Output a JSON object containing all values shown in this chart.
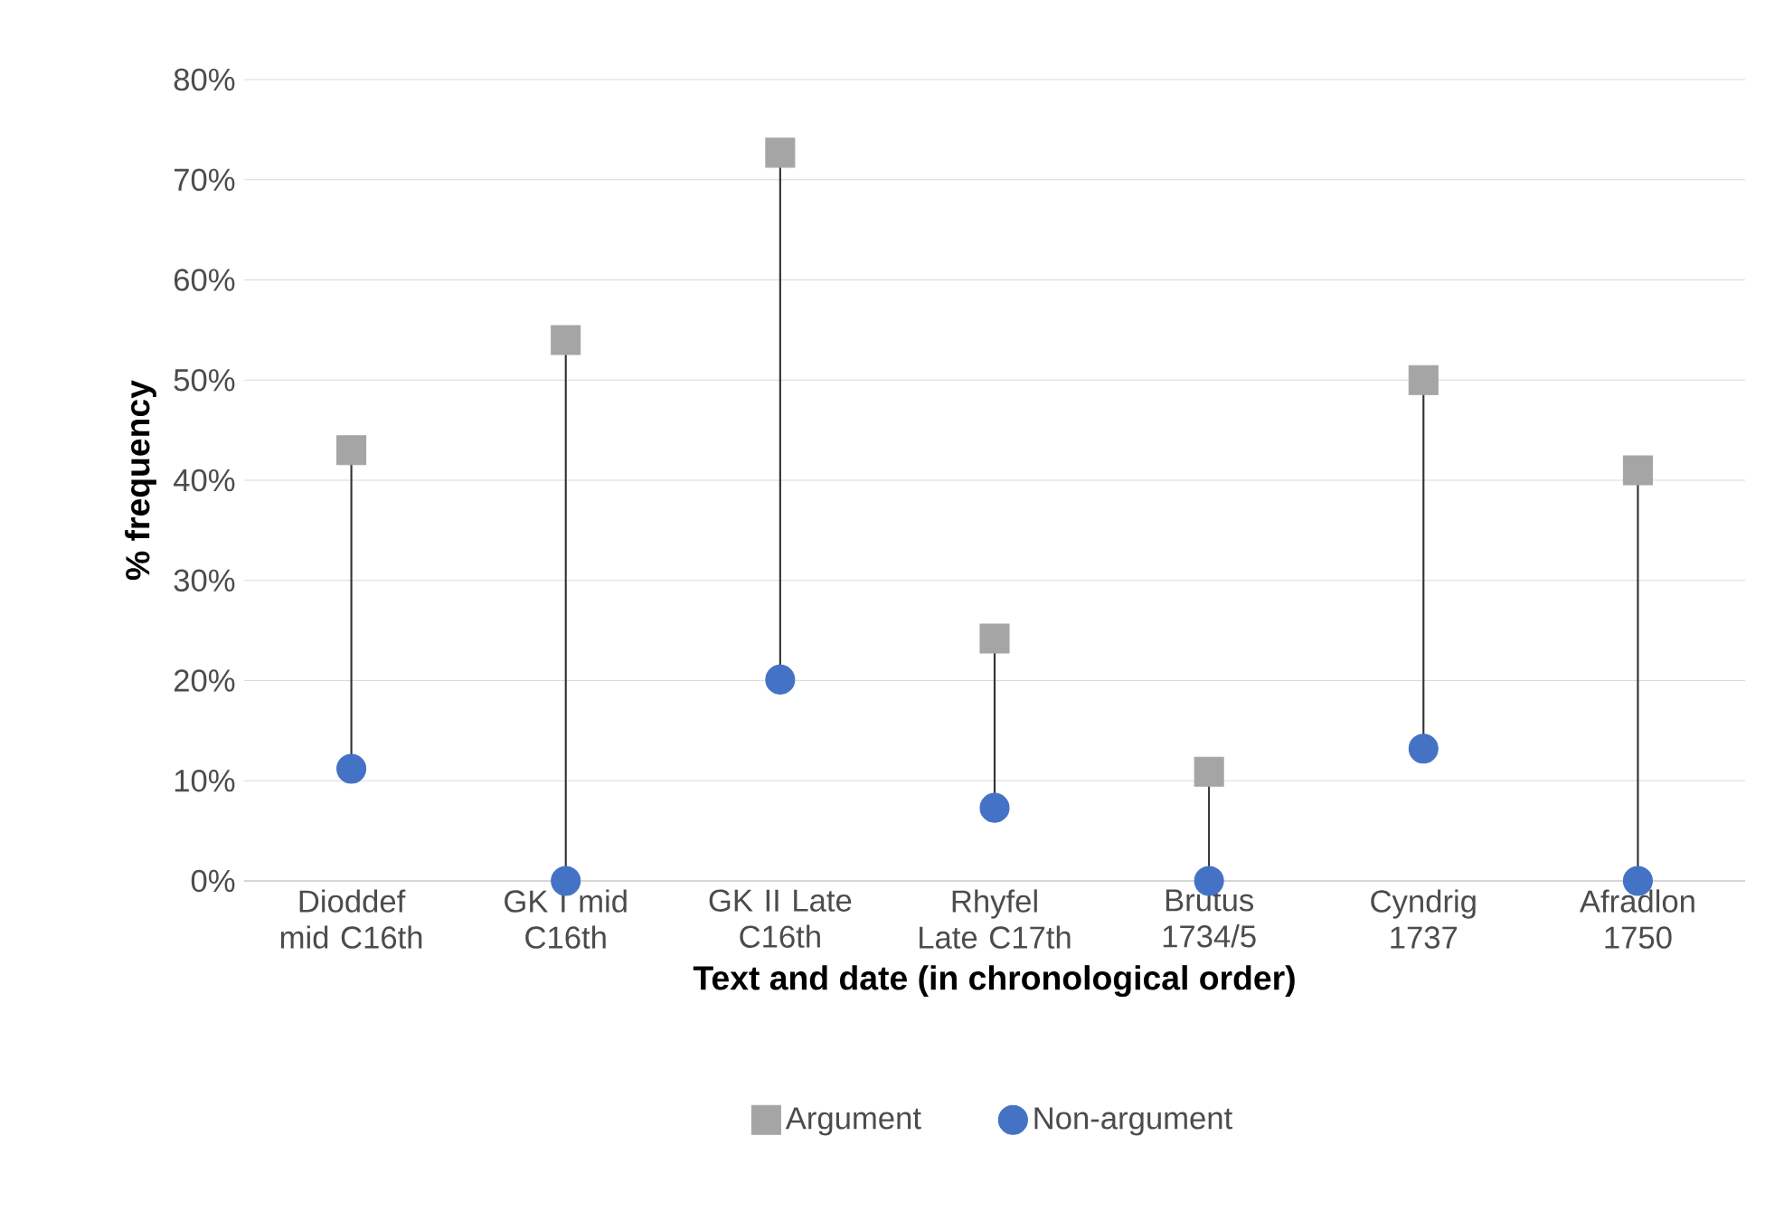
{
  "chart_data": {
    "type": "lollipop",
    "categories": [
      "Dioddef mid C16th",
      "GK I mid C16th",
      "GK II Late C16th",
      "Rhyfel Late C17th",
      "Brutus 1734/5",
      "Cyndrig 1737",
      "Afradlon 1750"
    ],
    "xlabel": "Text and date (in chronological order)",
    "ylabel": "% frequency",
    "series": [
      {
        "name": "Argument",
        "color": "#a5a5a5",
        "marker": "square",
        "values": [
          43,
          54,
          72.7,
          24.2,
          10.9,
          50,
          41
        ]
      },
      {
        "name": "Non-argument",
        "color": "#4472c4",
        "marker": "circle",
        "values": [
          11.2,
          0,
          20.1,
          7.3,
          0,
          13.2,
          0
        ]
      }
    ],
    "ylim": [
      0,
      80
    ],
    "yticks": [
      {
        "value": 0,
        "label": "0%"
      },
      {
        "value": 10,
        "label": "10%"
      },
      {
        "value": 20,
        "label": "20%"
      },
      {
        "value": 30,
        "label": "30%"
      },
      {
        "value": 40,
        "label": "40%"
      },
      {
        "value": 50,
        "label": "50%"
      },
      {
        "value": 60,
        "label": "60%"
      },
      {
        "value": 70,
        "label": "70%"
      },
      {
        "value": 80,
        "label": "80%"
      }
    ],
    "grid": "y",
    "legend": "bottom"
  }
}
